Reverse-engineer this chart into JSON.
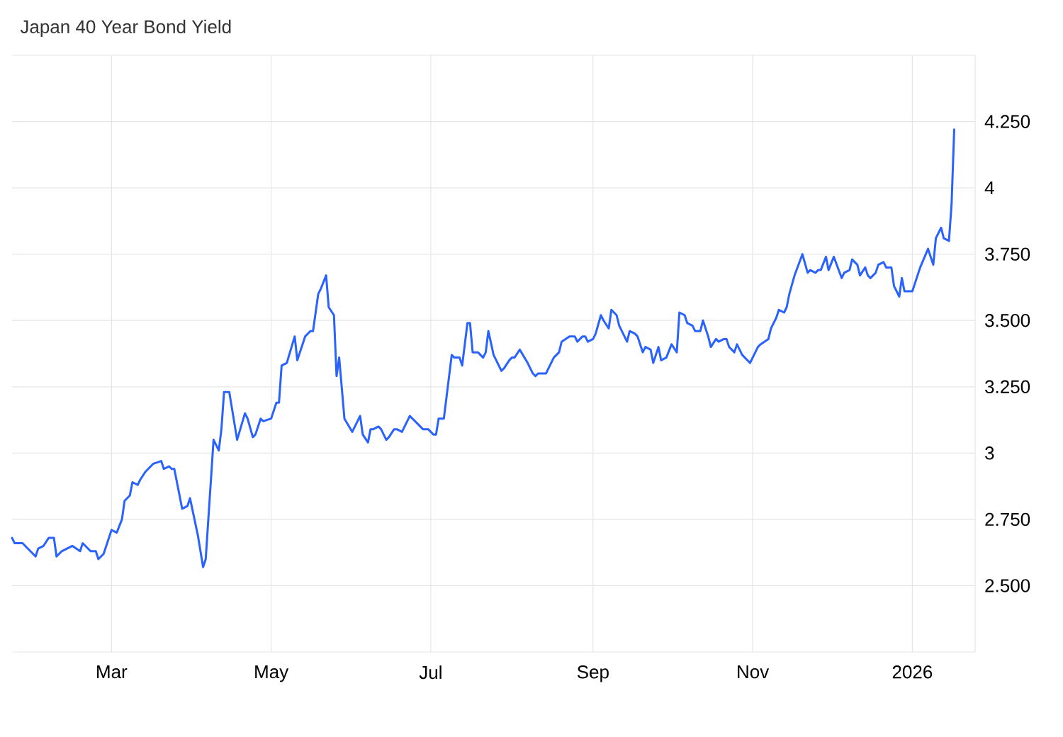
{
  "chart_data": {
    "type": "line",
    "title": "Japan 40 Year Bond Yield",
    "color": "#2962ff",
    "grid": true,
    "xlim": [
      "2025-01-22",
      "2026-01-25"
    ],
    "ylim": [
      2.25,
      4.5
    ],
    "xticks": [
      {
        "value": "2025-03-01",
        "label": "Mar"
      },
      {
        "value": "2025-05-01",
        "label": "May"
      },
      {
        "value": "2025-07-01",
        "label": "Jul"
      },
      {
        "value": "2025-09-01",
        "label": "Sep"
      },
      {
        "value": "2025-11-01",
        "label": "Nov"
      },
      {
        "value": "2026-01-01",
        "label": "2026"
      }
    ],
    "yticks": [
      {
        "value": 2.5,
        "label": "2.500"
      },
      {
        "value": 2.75,
        "label": "2.750"
      },
      3,
      {
        "value": 3.25,
        "label": "3.250"
      },
      {
        "value": 3.5,
        "label": "3.500"
      },
      {
        "value": 3.75,
        "label": "3.750"
      },
      4,
      {
        "value": 4.25,
        "label": "4.250"
      }
    ],
    "x": [
      "2025-01-22",
      "2025-01-23",
      "2025-01-26",
      "2025-01-29",
      "2025-01-31",
      "2025-02-01",
      "2025-02-03",
      "2025-02-05",
      "2025-02-07",
      "2025-02-08",
      "2025-02-10",
      "2025-02-14",
      "2025-02-17",
      "2025-02-18",
      "2025-02-21",
      "2025-02-23",
      "2025-02-24",
      "2025-02-26",
      "2025-03-01",
      "2025-03-03",
      "2025-03-05",
      "2025-03-06",
      "2025-03-08",
      "2025-03-09",
      "2025-03-11",
      "2025-03-12",
      "2025-03-14",
      "2025-03-15",
      "2025-03-17",
      "2025-03-20",
      "2025-03-21",
      "2025-03-23",
      "2025-03-24",
      "2025-03-25",
      "2025-03-28",
      "2025-03-30",
      "2025-03-31",
      "2025-04-03",
      "2025-04-05",
      "2025-04-06",
      "2025-04-09",
      "2025-04-11",
      "2025-04-12",
      "2025-04-13",
      "2025-04-15",
      "2025-04-18",
      "2025-04-21",
      "2025-04-22",
      "2025-04-24",
      "2025-04-25",
      "2025-04-27",
      "2025-04-28",
      "2025-05-01",
      "2025-05-03",
      "2025-05-04",
      "2025-05-05",
      "2025-05-07",
      "2025-05-10",
      "2025-05-11",
      "2025-05-14",
      "2025-05-16",
      "2025-05-17",
      "2025-05-19",
      "2025-05-20",
      "2025-05-22",
      "2025-05-23",
      "2025-05-25",
      "2025-05-26",
      "2025-05-27",
      "2025-05-29",
      "2025-06-01",
      "2025-06-02",
      "2025-06-04",
      "2025-06-05",
      "2025-06-07",
      "2025-06-08",
      "2025-06-09",
      "2025-06-11",
      "2025-06-12",
      "2025-06-14",
      "2025-06-15",
      "2025-06-17",
      "2025-06-18",
      "2025-06-20",
      "2025-06-21",
      "2025-06-23",
      "2025-06-24",
      "2025-06-26",
      "2025-06-28",
      "2025-06-30",
      "2025-07-02",
      "2025-07-03",
      "2025-07-04",
      "2025-07-06",
      "2025-07-09",
      "2025-07-10",
      "2025-07-12",
      "2025-07-13",
      "2025-07-15",
      "2025-07-16",
      "2025-07-17",
      "2025-07-19",
      "2025-07-21",
      "2025-07-22",
      "2025-07-23",
      "2025-07-25",
      "2025-07-28",
      "2025-07-29",
      "2025-07-31",
      "2025-08-01",
      "2025-08-02",
      "2025-08-04",
      "2025-08-07",
      "2025-08-09",
      "2025-08-10",
      "2025-08-11",
      "2025-08-13",
      "2025-08-14",
      "2025-08-17",
      "2025-08-19",
      "2025-08-20",
      "2025-08-23",
      "2025-08-25",
      "2025-08-26",
      "2025-08-28",
      "2025-08-29",
      "2025-08-30",
      "2025-09-01",
      "2025-09-02",
      "2025-09-04",
      "2025-09-05",
      "2025-09-07",
      "2025-09-08",
      "2025-09-10",
      "2025-09-11",
      "2025-09-12",
      "2025-09-14",
      "2025-09-15",
      "2025-09-17",
      "2025-09-18",
      "2025-09-20",
      "2025-09-21",
      "2025-09-23",
      "2025-09-24",
      "2025-09-26",
      "2025-09-27",
      "2025-09-29",
      "2025-10-01",
      "2025-10-03",
      "2025-10-04",
      "2025-10-06",
      "2025-10-07",
      "2025-10-09",
      "2025-10-10",
      "2025-10-12",
      "2025-10-13",
      "2025-10-15",
      "2025-10-16",
      "2025-10-18",
      "2025-10-19",
      "2025-10-21",
      "2025-10-22",
      "2025-10-23",
      "2025-10-25",
      "2025-10-26",
      "2025-10-28",
      "2025-10-31",
      "2025-11-01",
      "2025-11-03",
      "2025-11-04",
      "2025-11-07",
      "2025-11-08",
      "2025-11-10",
      "2025-11-11",
      "2025-11-13",
      "2025-11-14",
      "2025-11-15",
      "2025-11-17",
      "2025-11-20",
      "2025-11-22",
      "2025-11-23",
      "2025-11-25",
      "2025-11-26",
      "2025-11-27",
      "2025-11-29",
      "2025-11-30",
      "2025-12-02",
      "2025-12-05",
      "2025-12-06",
      "2025-12-08",
      "2025-12-09",
      "2025-12-11",
      "2025-12-12",
      "2025-12-14",
      "2025-12-15",
      "2025-12-16",
      "2025-12-18",
      "2025-12-19",
      "2025-12-21",
      "2025-12-22",
      "2025-12-24",
      "2025-12-25",
      "2025-12-27",
      "2025-12-28",
      "2025-12-29",
      "2026-01-01",
      "2026-01-04",
      "2026-01-07",
      "2026-01-09",
      "2026-01-10",
      "2026-01-12",
      "2026-01-13",
      "2026-01-15",
      "2026-01-16",
      "2026-01-17"
    ],
    "values": [
      2.68,
      2.66,
      2.66,
      2.63,
      2.61,
      2.64,
      2.65,
      2.68,
      2.68,
      2.61,
      2.63,
      2.65,
      2.63,
      2.66,
      2.63,
      2.63,
      2.6,
      2.62,
      2.71,
      2.7,
      2.75,
      2.82,
      2.84,
      2.89,
      2.88,
      2.9,
      2.93,
      2.94,
      2.96,
      2.97,
      2.94,
      2.95,
      2.94,
      2.94,
      2.79,
      2.8,
      2.83,
      2.69,
      2.57,
      2.6,
      3.05,
      3.01,
      3.09,
      3.23,
      3.23,
      3.05,
      3.15,
      3.13,
      3.06,
      3.07,
      3.13,
      3.12,
      3.13,
      3.19,
      3.19,
      3.33,
      3.34,
      3.44,
      3.35,
      3.44,
      3.46,
      3.46,
      3.6,
      3.62,
      3.67,
      3.55,
      3.52,
      3.29,
      3.36,
      3.13,
      3.08,
      3.1,
      3.14,
      3.07,
      3.04,
      3.09,
      3.09,
      3.1,
      3.09,
      3.05,
      3.06,
      3.09,
      3.09,
      3.08,
      3.1,
      3.14,
      3.13,
      3.11,
      3.09,
      3.09,
      3.07,
      3.07,
      3.13,
      3.13,
      3.37,
      3.36,
      3.36,
      3.33,
      3.49,
      3.49,
      3.38,
      3.38,
      3.36,
      3.38,
      3.46,
      3.37,
      3.31,
      3.32,
      3.35,
      3.36,
      3.36,
      3.39,
      3.34,
      3.3,
      3.29,
      3.3,
      3.3,
      3.3,
      3.36,
      3.38,
      3.42,
      3.44,
      3.44,
      3.42,
      3.44,
      3.44,
      3.42,
      3.43,
      3.45,
      3.52,
      3.5,
      3.47,
      3.54,
      3.52,
      3.48,
      3.46,
      3.42,
      3.46,
      3.45,
      3.44,
      3.38,
      3.4,
      3.39,
      3.34,
      3.4,
      3.35,
      3.36,
      3.41,
      3.38,
      3.53,
      3.52,
      3.49,
      3.48,
      3.46,
      3.46,
      3.5,
      3.44,
      3.4,
      3.43,
      3.42,
      3.43,
      3.43,
      3.4,
      3.38,
      3.41,
      3.37,
      3.34,
      3.36,
      3.4,
      3.41,
      3.43,
      3.47,
      3.51,
      3.54,
      3.53,
      3.55,
      3.6,
      3.67,
      3.75,
      3.68,
      3.69,
      3.68,
      3.69,
      3.69,
      3.74,
      3.69,
      3.74,
      3.66,
      3.68,
      3.69,
      3.73,
      3.71,
      3.67,
      3.7,
      3.67,
      3.66,
      3.68,
      3.71,
      3.72,
      3.7,
      3.7,
      3.63,
      3.59,
      3.66,
      3.61,
      3.61,
      3.7,
      3.77,
      3.71,
      3.81,
      3.85,
      3.81,
      3.8,
      3.94,
      4.22
    ]
  }
}
